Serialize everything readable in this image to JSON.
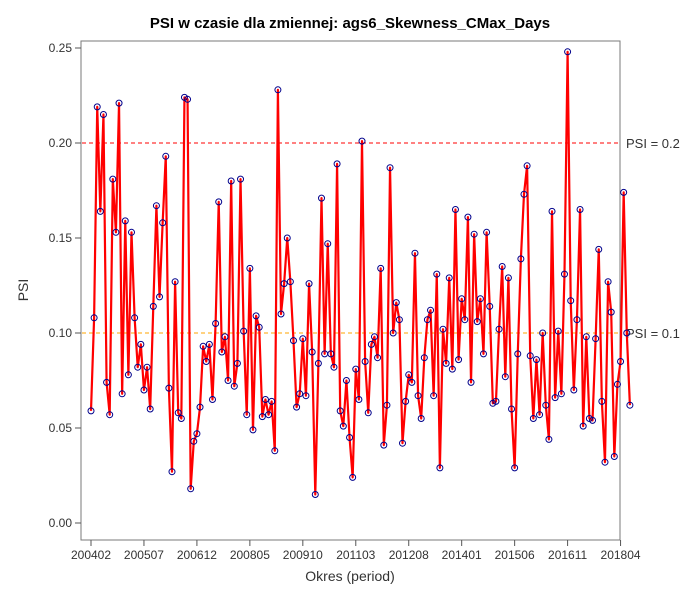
{
  "chart_data": {
    "type": "line",
    "title": "PSI w czasie dla zmiennej: ags6_Skewness_CMax_Days",
    "xlabel": "Okres (period)",
    "ylabel": "PSI",
    "ylim": [
      0,
      0.25
    ],
    "yticks": [
      "0.00",
      "0.05",
      "0.10",
      "0.15",
      "0.20",
      "0.25"
    ],
    "xticks": [
      "200402",
      "200507",
      "200612",
      "200805",
      "200910",
      "201103",
      "201208",
      "201401",
      "201506",
      "201611",
      "201804"
    ],
    "x_start": "200402",
    "reference_lines": [
      {
        "label": "PSI = 0.2",
        "value": 0.2,
        "color": "#ff0000",
        "style": "dashed"
      },
      {
        "label": "PSI = 0.1",
        "value": 0.1,
        "color": "#ffa500",
        "style": "dashed"
      }
    ],
    "series": [
      {
        "line_color": "#ff0000",
        "marker_color": "#00008b",
        "values": [
          0.059,
          0.108,
          0.219,
          0.164,
          0.215,
          0.074,
          0.057,
          0.181,
          0.153,
          0.221,
          0.068,
          0.159,
          0.078,
          0.153,
          0.108,
          0.082,
          0.094,
          0.07,
          0.082,
          0.06,
          0.114,
          0.167,
          0.119,
          0.158,
          0.193,
          0.071,
          0.027,
          0.127,
          0.058,
          0.055,
          0.224,
          0.223,
          0.018,
          0.043,
          0.047,
          0.061,
          0.093,
          0.085,
          0.094,
          0.065,
          0.105,
          0.169,
          0.09,
          0.098,
          0.075,
          0.18,
          0.072,
          0.084,
          0.181,
          0.101,
          0.057,
          0.134,
          0.049,
          0.109,
          0.103,
          0.056,
          0.065,
          0.057,
          0.064,
          0.038,
          0.228,
          0.11,
          0.126,
          0.15,
          0.127,
          0.096,
          0.061,
          0.068,
          0.097,
          0.067,
          0.126,
          0.09,
          0.015,
          0.084,
          0.171,
          0.089,
          0.147,
          0.089,
          0.082,
          0.189,
          0.059,
          0.051,
          0.075,
          0.045,
          0.024,
          0.081,
          0.065,
          0.201,
          0.085,
          0.058,
          0.094,
          0.098,
          0.087,
          0.134,
          0.041,
          0.062,
          0.187,
          0.1,
          0.116,
          0.107,
          0.042,
          0.064,
          0.078,
          0.074,
          0.142,
          0.067,
          0.055,
          0.087,
          0.107,
          0.112,
          0.067,
          0.131,
          0.029,
          0.102,
          0.084,
          0.129,
          0.081,
          0.165,
          0.086,
          0.118,
          0.107,
          0.161,
          0.074,
          0.152,
          0.106,
          0.118,
          0.089,
          0.153,
          0.114,
          0.063,
          0.064,
          0.102,
          0.135,
          0.077,
          0.129,
          0.06,
          0.029,
          0.089,
          0.139,
          0.173,
          0.188,
          0.088,
          0.055,
          0.086,
          0.057,
          0.1,
          0.062,
          0.044,
          0.164,
          0.066,
          0.101,
          0.068,
          0.131,
          0.248,
          0.117,
          0.07,
          0.107,
          0.165,
          0.051,
          0.098,
          0.055,
          0.054,
          0.097,
          0.144,
          0.064,
          0.032,
          0.127,
          0.111,
          0.035,
          0.073,
          0.085,
          0.174,
          0.1,
          0.062
        ]
      }
    ]
  }
}
